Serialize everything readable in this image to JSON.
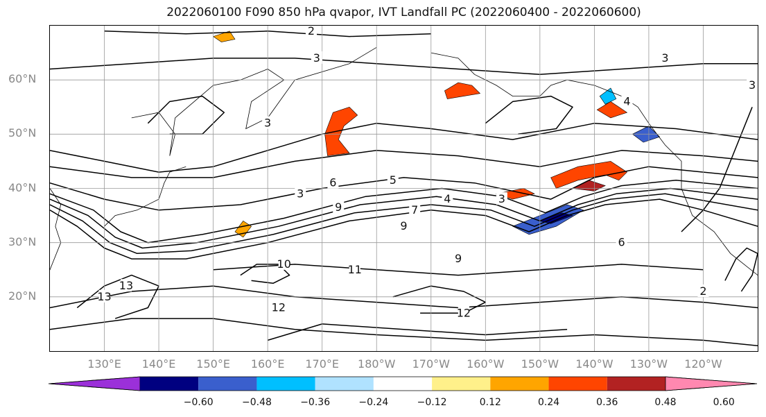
{
  "title": "2022060100 F090 850 hPa qvapor, IVT Landfall PC (2022060400 - 2022060600)",
  "lat_labels": [
    {
      "lat": 60,
      "text": "60°N"
    },
    {
      "lat": 50,
      "text": "50°N"
    },
    {
      "lat": 40,
      "text": "40°N"
    },
    {
      "lat": 30,
      "text": "30°N"
    },
    {
      "lat": 20,
      "text": "20°N"
    }
  ],
  "lon_labels": [
    {
      "lon": 130,
      "text": "130°E"
    },
    {
      "lon": 140,
      "text": "140°E"
    },
    {
      "lon": 150,
      "text": "150°E"
    },
    {
      "lon": 160,
      "text": "160°E"
    },
    {
      "lon": 170,
      "text": "170°E"
    },
    {
      "lon": 180,
      "text": "180°W"
    },
    {
      "lon": 190,
      "text": "170°W"
    },
    {
      "lon": 200,
      "text": "160°W"
    },
    {
      "lon": 210,
      "text": "150°W"
    },
    {
      "lon": 220,
      "text": "140°W"
    },
    {
      "lon": 230,
      "text": "130°W"
    },
    {
      "lon": 240,
      "text": "120°W"
    }
  ],
  "extent": {
    "lon_min": 120,
    "lon_max": 250,
    "lat_min": 10,
    "lat_max": 70
  },
  "colorbar": {
    "colors": [
      "#9b30d9",
      "#000080",
      "#3a5fcd",
      "#00bfff",
      "#b0e2ff",
      "#ffffff",
      "#fff08a",
      "#ffa500",
      "#ff4500",
      "#b22222",
      "#ff88b0"
    ],
    "ticks": [
      "−0.60",
      "−0.48",
      "−0.36",
      "−0.24",
      "−0.12",
      "0.12",
      "0.24",
      "0.36",
      "0.48",
      "0.60"
    ]
  },
  "contour_labels": [
    "2",
    "3",
    "3",
    "3",
    "3",
    "3",
    "4",
    "4",
    "5",
    "6",
    "6",
    "7",
    "9",
    "9",
    "9",
    "10",
    "11",
    "12",
    "12",
    "13",
    "13",
    "3",
    "2"
  ],
  "fills": [
    {
      "name": "fill-positive-central-north-pacific",
      "color": "#ff4500",
      "points": [
        [
          170.5,
          50
        ],
        [
          172,
          54
        ],
        [
          175,
          55
        ],
        [
          176.5,
          53.5
        ],
        [
          174,
          51.5
        ],
        [
          173,
          49
        ],
        [
          175,
          46.5
        ],
        [
          171,
          46
        ]
      ]
    },
    {
      "name": "fill-positive-bering-sea",
      "color": "#ff4500",
      "points": [
        [
          192.5,
          58
        ],
        [
          195,
          59.5
        ],
        [
          197.5,
          59
        ],
        [
          199,
          57.5
        ],
        [
          196,
          57
        ],
        [
          193,
          56.5
        ]
      ]
    },
    {
      "name": "fill-positive-northeast-pacific-band",
      "color": "#ff4500",
      "points": [
        [
          212,
          42
        ],
        [
          217,
          44
        ],
        [
          223,
          45
        ],
        [
          226,
          43
        ],
        [
          224.5,
          41.5
        ],
        [
          222,
          42.5
        ],
        [
          217,
          41.5
        ],
        [
          213,
          40
        ]
      ]
    },
    {
      "name": "fill-strong-positive-northeast-pacific",
      "color": "#b22222",
      "points": [
        [
          216,
          40
        ],
        [
          219,
          41.5
        ],
        [
          222,
          40.5
        ],
        [
          220,
          39.5
        ]
      ]
    },
    {
      "name": "fill-positive-gulf-alaska",
      "color": "#ff4500",
      "points": [
        [
          220.5,
          54.5
        ],
        [
          223,
          56
        ],
        [
          226,
          54
        ],
        [
          223,
          53
        ]
      ]
    },
    {
      "name": "fill-positive-subtropical-band",
      "color": "#ff4500",
      "points": [
        [
          202,
          39
        ],
        [
          207,
          40
        ],
        [
          209,
          39
        ],
        [
          205,
          38
        ]
      ]
    },
    {
      "name": "fill-negative-northeast-pacific",
      "color": "#3a5fcd",
      "points": [
        [
          205,
          33
        ],
        [
          210,
          35
        ],
        [
          215,
          37
        ],
        [
          218,
          36
        ],
        [
          213,
          33
        ],
        [
          208,
          31.5
        ]
      ]
    },
    {
      "name": "fill-strong-negative-northeast-pacific",
      "color": "#000080",
      "points": [
        [
          210,
          34
        ],
        [
          214,
          35.5
        ],
        [
          216,
          35
        ],
        [
          212,
          33.5
        ]
      ]
    },
    {
      "name": "fill-negative-gulf-alaska",
      "color": "#3a5fcd",
      "points": [
        [
          227,
          50
        ],
        [
          230,
          51.5
        ],
        [
          232,
          49.5
        ],
        [
          229,
          48.5
        ]
      ]
    },
    {
      "name": "fill-negative-alaska-panhandle",
      "color": "#00bfff",
      "points": [
        [
          221,
          57
        ],
        [
          223,
          58.5
        ],
        [
          224,
          56.5
        ],
        [
          222,
          55.5
        ]
      ]
    },
    {
      "name": "fill-positive-western-pacific",
      "color": "#ffa500",
      "points": [
        [
          154,
          32
        ],
        [
          155.5,
          34
        ],
        [
          157,
          33
        ],
        [
          155.5,
          31
        ]
      ]
    },
    {
      "name": "fill-positive-aleutian",
      "color": "#ffa500",
      "points": [
        [
          150,
          68
        ],
        [
          153,
          69
        ],
        [
          154,
          67.5
        ],
        [
          151.5,
          67
        ]
      ]
    }
  ],
  "contours": [
    {
      "name": "contour-jet-13",
      "points": [
        [
          120,
          36
        ],
        [
          125,
          33
        ],
        [
          130,
          29
        ],
        [
          135,
          27
        ],
        [
          145,
          27
        ],
        [
          160,
          30
        ],
        [
          175,
          34
        ],
        [
          190,
          36
        ],
        [
          200,
          35
        ],
        [
          208,
          32
        ],
        [
          215,
          35
        ],
        [
          222,
          37
        ],
        [
          232,
          38
        ],
        [
          240,
          36
        ],
        [
          250,
          33
        ]
      ]
    },
    {
      "name": "contour-jet-11",
      "points": [
        [
          120,
          37
        ],
        [
          126,
          34
        ],
        [
          131,
          30
        ],
        [
          136,
          28
        ],
        [
          146,
          28.5
        ],
        [
          161,
          31.5
        ],
        [
          176,
          35.5
        ],
        [
          190,
          37
        ],
        [
          201,
          36
        ],
        [
          209,
          33
        ],
        [
          216,
          36
        ],
        [
          223,
          38
        ],
        [
          233,
          39
        ],
        [
          250,
          36
        ]
      ]
    },
    {
      "name": "contour-jet-9",
      "points": [
        [
          120,
          38
        ],
        [
          127,
          35
        ],
        [
          132,
          31
        ],
        [
          137,
          29
        ],
        [
          147,
          30
        ],
        [
          162,
          33
        ],
        [
          177,
          37
        ],
        [
          191,
          38.5
        ],
        [
          202,
          37
        ],
        [
          210,
          34
        ],
        [
          217,
          37
        ],
        [
          224,
          39
        ],
        [
          234,
          40
        ],
        [
          250,
          38
        ]
      ]
    },
    {
      "name": "contour-jet-7",
      "points": [
        [
          120,
          39
        ],
        [
          128,
          36
        ],
        [
          133,
          32
        ],
        [
          138,
          30
        ],
        [
          148,
          31.5
        ],
        [
          163,
          34.5
        ],
        [
          178,
          38.5
        ],
        [
          192,
          40
        ],
        [
          203,
          38.5
        ],
        [
          211,
          35.5
        ],
        [
          218,
          38.5
        ],
        [
          225,
          40.5
        ],
        [
          235,
          41.5
        ],
        [
          250,
          40
        ]
      ]
    },
    {
      "name": "contour-6",
      "points": [
        [
          120,
          41
        ],
        [
          130,
          38
        ],
        [
          140,
          36
        ],
        [
          155,
          37
        ],
        [
          170,
          40
        ],
        [
          185,
          42
        ],
        [
          198,
          41
        ],
        [
          212,
          38
        ],
        [
          220,
          42
        ],
        [
          230,
          44
        ],
        [
          240,
          43
        ],
        [
          250,
          42
        ]
      ]
    },
    {
      "name": "contour-4",
      "points": [
        [
          120,
          44
        ],
        [
          135,
          42
        ],
        [
          150,
          42
        ],
        [
          165,
          45
        ],
        [
          180,
          47
        ],
        [
          195,
          46
        ],
        [
          210,
          44
        ],
        [
          225,
          47
        ],
        [
          240,
          46
        ],
        [
          250,
          45
        ]
      ]
    },
    {
      "name": "contour-3-north",
      "points": [
        [
          120,
          62
        ],
        [
          135,
          63
        ],
        [
          150,
          64
        ],
        [
          165,
          64
        ],
        [
          180,
          63
        ],
        [
          195,
          62
        ],
        [
          210,
          61
        ],
        [
          225,
          62
        ],
        [
          240,
          63
        ],
        [
          250,
          63
        ]
      ]
    },
    {
      "name": "contour-2-arctic",
      "points": [
        [
          130,
          69
        ],
        [
          145,
          68.5
        ],
        [
          160,
          69
        ],
        [
          175,
          68
        ],
        [
          190,
          68.5
        ]
      ]
    },
    {
      "name": "contour-subtropical-12",
      "points": [
        [
          120,
          18
        ],
        [
          135,
          21
        ],
        [
          150,
          22
        ],
        [
          165,
          20
        ],
        [
          180,
          19
        ],
        [
          195,
          18
        ],
        [
          210,
          19
        ],
        [
          225,
          20
        ],
        [
          240,
          19
        ],
        [
          250,
          18
        ]
      ]
    },
    {
      "name": "contour-subtropical-13",
      "points": [
        [
          120,
          14
        ],
        [
          135,
          16
        ],
        [
          150,
          16
        ],
        [
          165,
          14
        ],
        [
          180,
          13
        ],
        [
          200,
          12
        ],
        [
          220,
          13
        ],
        [
          240,
          12
        ],
        [
          250,
          11
        ]
      ]
    },
    {
      "name": "contour-subtropical-10",
      "points": [
        [
          160,
          12
        ],
        [
          170,
          15
        ],
        [
          185,
          14
        ],
        [
          200,
          13
        ],
        [
          215,
          14
        ]
      ]
    },
    {
      "name": "contour-subtropical-9",
      "points": [
        [
          150,
          25
        ],
        [
          165,
          26
        ],
        [
          180,
          25
        ],
        [
          195,
          24
        ],
        [
          210,
          25
        ],
        [
          225,
          26
        ],
        [
          240,
          25
        ]
      ]
    },
    {
      "name": "contour-midlat-5",
      "points": [
        [
          120,
          47
        ],
        [
          130,
          45
        ],
        [
          140,
          43
        ],
        [
          150,
          44
        ],
        [
          160,
          47
        ],
        [
          170,
          50
        ],
        [
          180,
          52
        ],
        [
          190,
          51
        ],
        [
          205,
          49
        ],
        [
          220,
          52
        ],
        [
          235,
          51
        ],
        [
          250,
          49
        ]
      ]
    },
    {
      "name": "contour-west-loop",
      "points": [
        [
          155,
          24
        ],
        [
          158,
          26
        ],
        [
          162,
          26
        ],
        [
          164,
          24
        ],
        [
          161,
          22.5
        ],
        [
          157,
          23
        ]
      ]
    },
    {
      "name": "contour-far-east-cluster",
      "points": [
        [
          244,
          23
        ],
        [
          246,
          27
        ],
        [
          248,
          29
        ],
        [
          250,
          28
        ],
        [
          249,
          24
        ],
        [
          247,
          21
        ]
      ]
    },
    {
      "name": "contour-aleutian-low",
      "points": [
        [
          200,
          52
        ],
        [
          205,
          56
        ],
        [
          212,
          57
        ],
        [
          216,
          55
        ],
        [
          213,
          51
        ],
        [
          206,
          50
        ]
      ]
    },
    {
      "name": "contour-okhotsk",
      "points": [
        [
          138,
          52
        ],
        [
          142,
          56
        ],
        [
          148,
          57
        ],
        [
          152,
          54
        ],
        [
          148,
          50
        ],
        [
          142,
          50
        ]
      ]
    },
    {
      "name": "contour-east-coast",
      "points": [
        [
          236,
          32
        ],
        [
          240,
          36
        ],
        [
          243,
          40
        ],
        [
          245,
          45
        ],
        [
          247,
          50
        ],
        [
          249,
          55
        ]
      ]
    },
    {
      "name": "contour-south-west",
      "points": [
        [
          125,
          18
        ],
        [
          130,
          22
        ],
        [
          135,
          24
        ],
        [
          140,
          22
        ],
        [
          138,
          18
        ],
        [
          132,
          16
        ]
      ]
    },
    {
      "name": "contour-central-swirl",
      "points": [
        [
          183,
          20
        ],
        [
          190,
          22
        ],
        [
          196,
          21
        ],
        [
          200,
          19
        ],
        [
          196,
          17
        ],
        [
          188,
          17
        ]
      ]
    }
  ]
}
